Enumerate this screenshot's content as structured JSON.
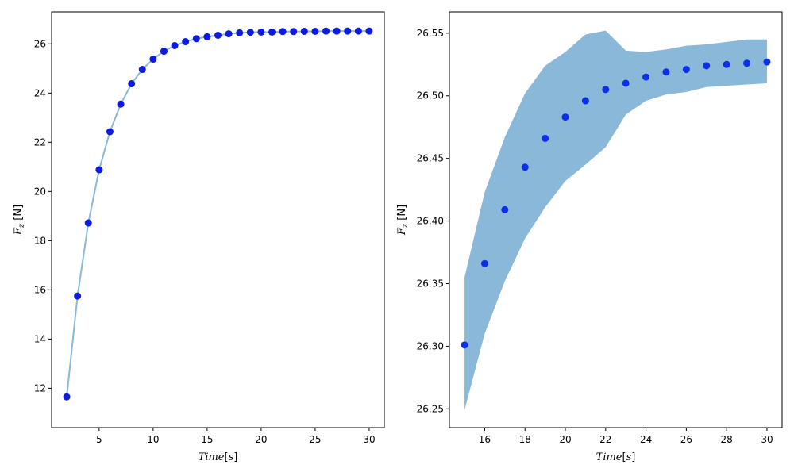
{
  "chart_data": [
    {
      "type": "line",
      "xlabel": "Time[s]",
      "ylabel": "F_z [N]",
      "xlim": [
        0.6,
        31.4
      ],
      "ylim": [
        10.4,
        27.3
      ],
      "xticks": [
        5,
        10,
        15,
        20,
        25,
        30
      ],
      "yticks": [
        12,
        14,
        16,
        18,
        20,
        22,
        24,
        26
      ],
      "line_color": "#8ab8d9",
      "marker_color": "#0d1be0",
      "series": [
        {
          "x": [
            2,
            3,
            4,
            5,
            6,
            7,
            8,
            9,
            10,
            11,
            12,
            13,
            14,
            15,
            16,
            17,
            18,
            19,
            20,
            21,
            22,
            23,
            24,
            25,
            26,
            27,
            28,
            29,
            30
          ],
          "values": [
            11.65,
            15.75,
            18.72,
            20.88,
            22.43,
            23.55,
            24.38,
            24.96,
            25.38,
            25.7,
            25.93,
            26.09,
            26.21,
            26.29,
            26.35,
            26.41,
            26.45,
            26.47,
            26.48,
            26.48,
            26.5,
            26.5,
            26.51,
            26.51,
            26.52,
            26.52,
            26.52,
            26.52,
            26.52
          ]
        }
      ]
    },
    {
      "type": "scatter",
      "xlabel": "Time[s]",
      "ylabel": "F_z [N]",
      "xlim": [
        14.25,
        30.75
      ],
      "ylim": [
        26.235,
        26.567
      ],
      "xticks": [
        16,
        18,
        20,
        22,
        24,
        26,
        28,
        30
      ],
      "yticks": [
        26.25,
        26.3,
        26.35,
        26.4,
        26.45,
        26.5,
        26.55
      ],
      "band_color": "#8ab8d9",
      "marker_color": "#0d2fe6",
      "series": [
        {
          "x": [
            15,
            16,
            17,
            18,
            19,
            20,
            21,
            22,
            23,
            24,
            25,
            26,
            27,
            28,
            29,
            30
          ],
          "values": [
            26.301,
            26.366,
            26.409,
            26.443,
            26.466,
            26.483,
            26.496,
            26.505,
            26.51,
            26.515,
            26.519,
            26.521,
            26.524,
            26.525,
            26.526,
            26.527
          ],
          "band_lower": [
            26.249,
            26.31,
            26.352,
            26.386,
            26.411,
            26.432,
            26.445,
            26.459,
            26.485,
            26.496,
            26.501,
            26.503,
            26.507,
            26.508,
            26.509,
            26.51
          ],
          "band_upper": [
            26.355,
            26.423,
            26.467,
            26.502,
            26.524,
            26.535,
            26.549,
            26.552,
            26.536,
            26.535,
            26.537,
            26.54,
            26.541,
            26.543,
            26.545,
            26.545
          ]
        }
      ]
    }
  ]
}
